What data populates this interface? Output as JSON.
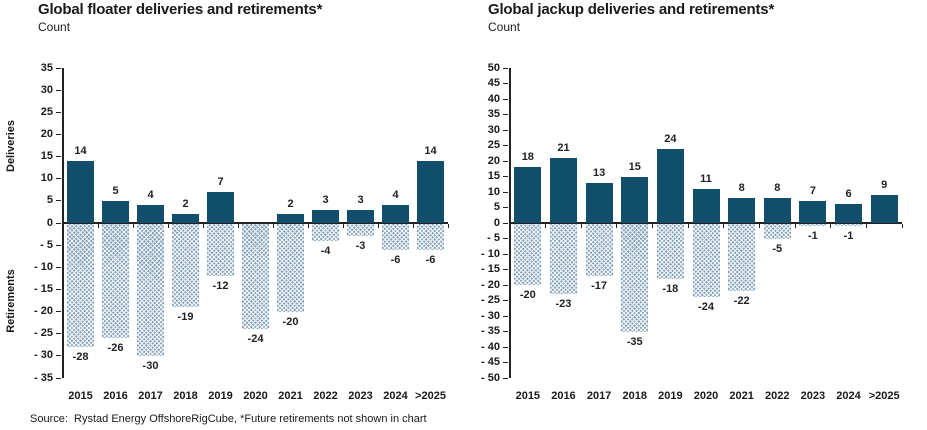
{
  "page": {
    "source_note": "Source:  Rystad Energy OffshoreRigCube, *Future retirements not shown in chart"
  },
  "colors": {
    "deliveries_bar": "#114E6C",
    "retirements_hatch_base": "#85A3BA",
    "retirements_hatch_line": "#F2F6F9",
    "axis": "#222222",
    "text": "#1a1a1a"
  },
  "chart_data": [
    {
      "type": "bar",
      "title": "Global floater deliveries and retirements*",
      "subtitle": "Count",
      "categories": [
        "2015",
        "2016",
        "2017",
        "2018",
        "2019",
        "2020",
        "2021",
        "2022",
        "2023",
        "2024",
        ">2025"
      ],
      "series": [
        {
          "name": "Deliveries",
          "values": [
            14,
            5,
            4,
            2,
            7,
            0,
            2,
            3,
            3,
            4,
            14
          ]
        },
        {
          "name": "Retirements",
          "values": [
            -28,
            -26,
            -30,
            -19,
            -12,
            -24,
            -20,
            -4,
            -3,
            -6,
            -6
          ]
        }
      ],
      "ylim": [
        -35,
        35
      ],
      "ytick_step": 5,
      "ylabel_positive": "Deliveries",
      "ylabel_negative": "Retirements",
      "grid": false,
      "legend": "none",
      "data_labels": true
    },
    {
      "type": "bar",
      "title": "Global jackup deliveries and retirements*",
      "subtitle": "Count",
      "categories": [
        "2015",
        "2016",
        "2017",
        "2018",
        "2019",
        "2020",
        "2021",
        "2022",
        "2023",
        "2024",
        ">2025"
      ],
      "series": [
        {
          "name": "Deliveries",
          "values": [
            18,
            21,
            13,
            15,
            24,
            11,
            8,
            8,
            7,
            6,
            9
          ]
        },
        {
          "name": "Retirements",
          "values": [
            -20,
            -23,
            -17,
            -35,
            -18,
            -24,
            -22,
            -5,
            -1,
            -1,
            0
          ]
        }
      ],
      "ylim": [
        -50,
        50
      ],
      "ytick_step": 5,
      "ylabel_positive": "",
      "ylabel_negative": "",
      "grid": false,
      "legend": "none",
      "data_labels": true
    }
  ]
}
